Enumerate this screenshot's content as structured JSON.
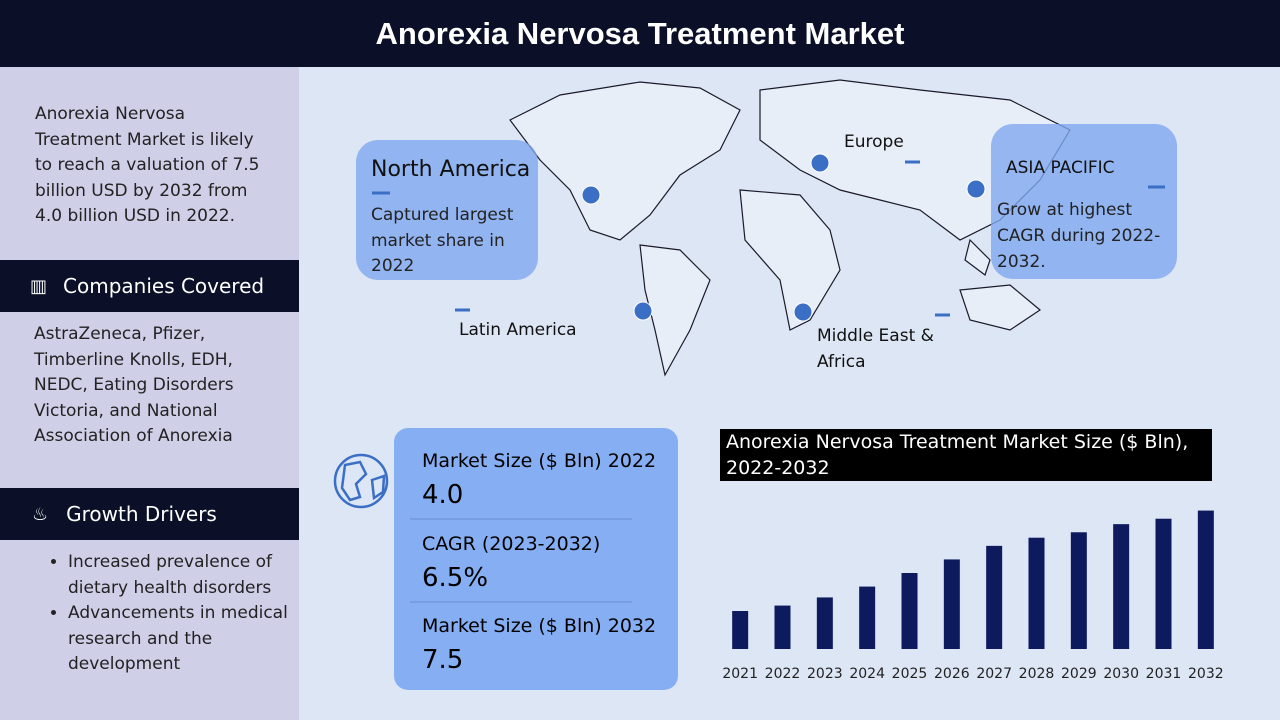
{
  "header": {
    "title": "Anorexia Nervosa Treatment Market"
  },
  "summary": {
    "text": "Anorexia Nervosa Treatment Market is likely to reach a valuation of 7.5 billion USD by 2032 from 4.0 billion USD in 2022."
  },
  "companies": {
    "heading": "Companies Covered",
    "text": "AstraZeneca, Pfizer, Timberline Knolls, EDH, NEDC, Eating Disorders Victoria, and National Association of Anorexia"
  },
  "drivers": {
    "heading": "Growth Drivers",
    "items": [
      "Increased prevalence of dietary health disorders",
      "Advancements in medical research and the development"
    ]
  },
  "regions": {
    "north_america": {
      "name": "North America",
      "text": "Captured largest market share in 2022"
    },
    "europe": {
      "name": "Europe"
    },
    "asia_pacific": {
      "name": "ASIA PACIFIC",
      "text": "Grow at highest CAGR during 2022-2032."
    },
    "latin_america": {
      "name": "Latin America"
    },
    "mea": {
      "name": "Middle East & Africa"
    }
  },
  "stats": [
    {
      "label": "Market Size ($ Bln) 2022",
      "value": "4.0"
    },
    {
      "label": "CAGR (2023-2032)",
      "value": "6.5%"
    },
    {
      "label": "Market Size ($ Bln) 2032",
      "value": "7.5"
    }
  ],
  "chart_data": {
    "type": "bar",
    "title": "Anorexia Nervosa Treatment Market Size ($ Bln), 2022-2032",
    "categories": [
      "2021",
      "2022",
      "2023",
      "2024",
      "2025",
      "2026",
      "2027",
      "2028",
      "2029",
      "2030",
      "2031",
      "2032"
    ],
    "values": [
      3.8,
      4.0,
      4.3,
      4.7,
      5.2,
      5.7,
      6.2,
      6.5,
      6.7,
      7.0,
      7.2,
      7.5
    ],
    "color": "#0d1b5e",
    "ylim": [
      2.4,
      8.0
    ]
  }
}
